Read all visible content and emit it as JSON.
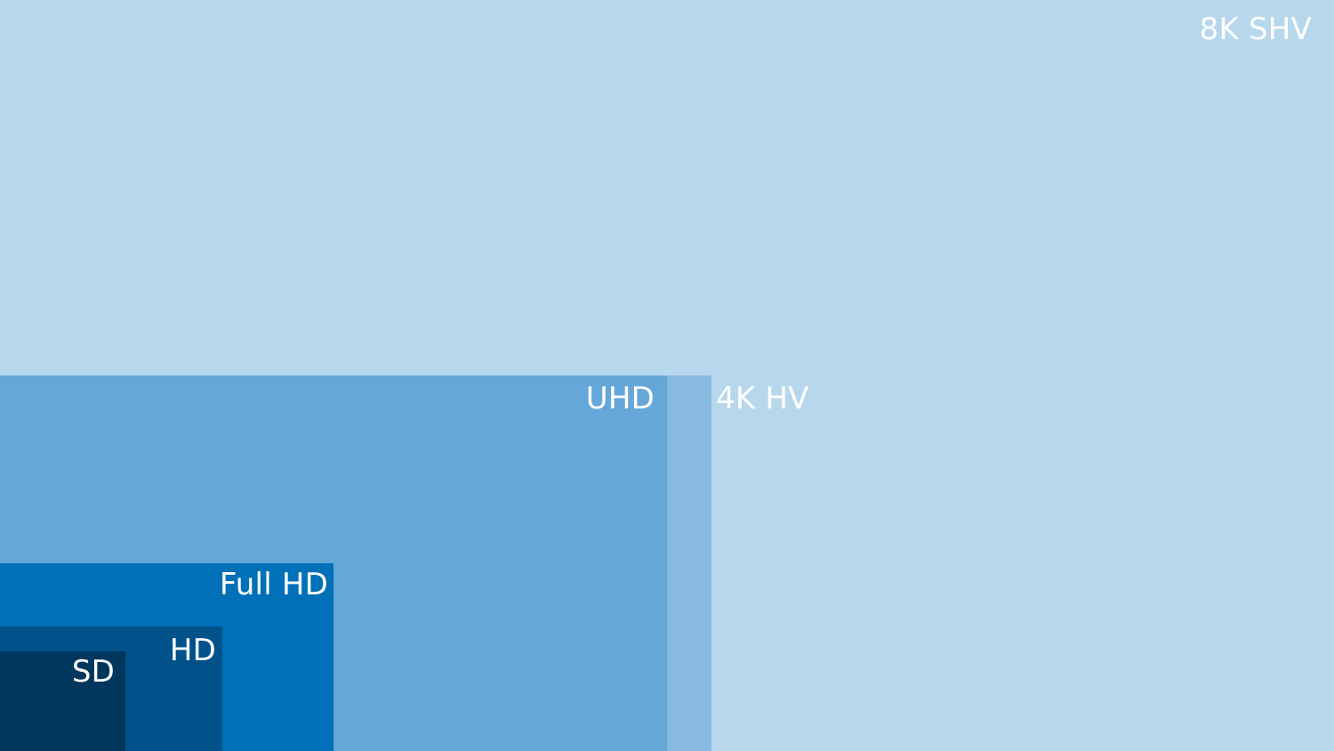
{
  "regions": [
    {
      "id": "8k",
      "label": "8K SHV",
      "color": "#b7d7ed"
    },
    {
      "id": "4k",
      "label": "4K HV",
      "color": "#87b9e1"
    },
    {
      "id": "uhd",
      "label": "UHD",
      "color": "#65a7d8"
    },
    {
      "id": "fhd",
      "label": "Full HD",
      "color": "#0070b8"
    },
    {
      "id": "hd",
      "label": "HD",
      "color": "#01518a"
    },
    {
      "id": "sd",
      "label": "SD",
      "color": "#01365d"
    }
  ]
}
